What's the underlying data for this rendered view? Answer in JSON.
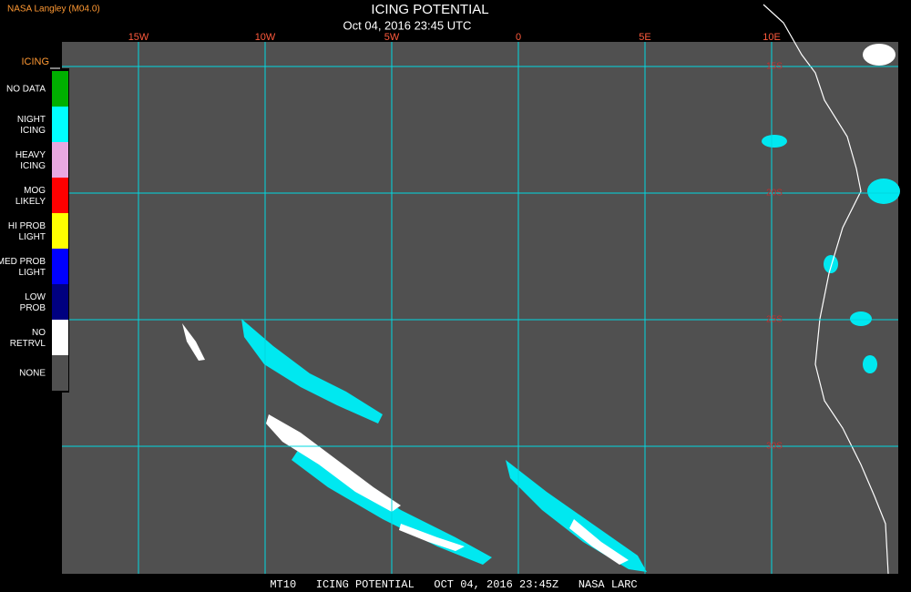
{
  "header": {
    "source": "NASA Langley (M04.0)",
    "title": "ICING POTENTIAL",
    "subtitle": "Oct 04, 2016 23:45 UTC"
  },
  "longitude_labels": [
    "15W",
    "10W",
    "5W",
    "0",
    "5E",
    "10E"
  ],
  "latitude_labels": [
    "15S",
    "20S",
    "25S",
    "30S"
  ],
  "legend": {
    "title": "ICING",
    "items": [
      {
        "label": "NO DATA",
        "color": "#00b000"
      },
      {
        "label": "NIGHT\nICING",
        "color": "#00ffff"
      },
      {
        "label": "HEAVY\nICING",
        "color": "#e8a8e0"
      },
      {
        "label": "MOG\nLIKELY",
        "color": "#ff0000"
      },
      {
        "label": "HI PROB\nLIGHT",
        "color": "#ffff00"
      },
      {
        "label": "MED PROB\nLIGHT",
        "color": "#0000ff"
      },
      {
        "label": "LOW\nPROB",
        "color": "#000080"
      },
      {
        "label": "NO\nRETRVL",
        "color": "#ffffff"
      },
      {
        "label": "NONE",
        "color": "#505050"
      }
    ]
  },
  "footer": "MT10   ICING POTENTIAL   OCT 04, 2016 23:45Z   NASA LARC"
}
